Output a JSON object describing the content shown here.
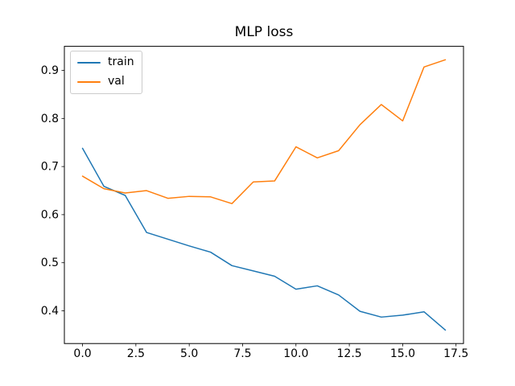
{
  "chart_data": {
    "type": "line",
    "title": "MLP loss",
    "x": [
      0,
      1,
      2,
      3,
      4,
      5,
      6,
      7,
      8,
      9,
      10,
      11,
      12,
      13,
      14,
      15,
      16,
      17
    ],
    "series": [
      {
        "name": "train",
        "color": "#1f77b4",
        "values": [
          0.738,
          0.659,
          0.64,
          0.563,
          0.549,
          0.535,
          0.522,
          0.494,
          0.483,
          0.472,
          0.445,
          0.452,
          0.433,
          0.399,
          0.387,
          0.391,
          0.398,
          0.36
        ]
      },
      {
        "name": "val",
        "color": "#ff7f0e",
        "values": [
          0.68,
          0.654,
          0.645,
          0.65,
          0.634,
          0.638,
          0.637,
          0.623,
          0.668,
          0.67,
          0.741,
          0.718,
          0.733,
          0.787,
          0.829,
          0.795,
          0.907,
          0.922
        ]
      }
    ],
    "xlim": [
      -0.85,
      17.85
    ],
    "ylim": [
      0.332,
      0.95
    ],
    "xticks": {
      "values": [
        0,
        2.5,
        5,
        7.5,
        10,
        12.5,
        15,
        17.5
      ],
      "labels": [
        "0.0",
        "2.5",
        "5.0",
        "7.5",
        "10.0",
        "12.5",
        "15.0",
        "17.5"
      ]
    },
    "yticks": {
      "values": [
        0.4,
        0.5,
        0.6,
        0.7,
        0.8,
        0.9
      ],
      "labels": [
        "0.4",
        "0.5",
        "0.6",
        "0.7",
        "0.8",
        "0.9"
      ]
    },
    "legend": {
      "position": "upper left",
      "entries": [
        "train",
        "val"
      ]
    },
    "grid": false,
    "frame_color": "#000000",
    "background": "#ffffff"
  }
}
